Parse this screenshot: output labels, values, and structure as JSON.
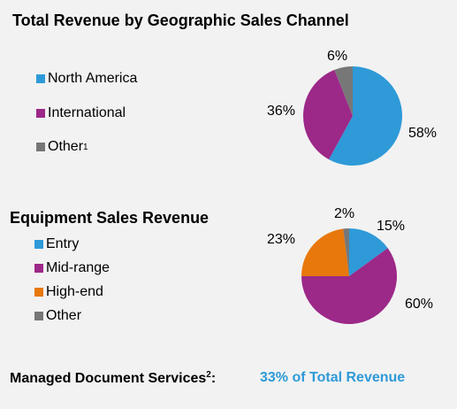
{
  "chart_data": [
    {
      "type": "pie",
      "title": "Total Revenue by Geographic Sales Channel",
      "categories": [
        "North America",
        "International",
        "Other"
      ],
      "category_superscripts": [
        "",
        "",
        "1"
      ],
      "values": [
        58,
        36,
        6
      ],
      "labels": [
        "58%",
        "36%",
        "6%"
      ],
      "colors": [
        "#2e9ad8",
        "#9c2888",
        "#777777"
      ],
      "legend_placement": "left"
    },
    {
      "type": "pie",
      "title": "Equipment Sales Revenue",
      "categories": [
        "Entry",
        "Mid-range",
        "High-end",
        "Other"
      ],
      "values": [
        15,
        60,
        23,
        2
      ],
      "labels": [
        "15%",
        "60%",
        "23%",
        "2%"
      ],
      "colors": [
        "#2e9ad8",
        "#9c2888",
        "#e8780c",
        "#777777"
      ],
      "legend_placement": "left"
    }
  ],
  "footer": {
    "label": "Managed Document Services",
    "label_superscript": "2",
    "label_suffix": ":",
    "value": "33% of Total Revenue",
    "value_color": "#2e9ad8"
  }
}
